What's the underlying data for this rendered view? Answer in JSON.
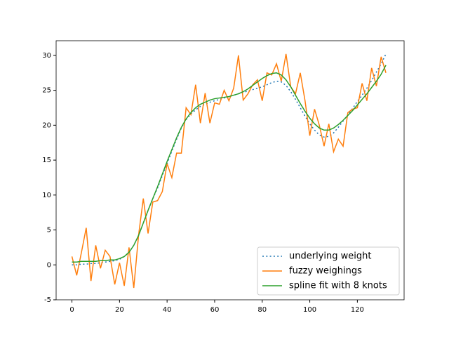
{
  "chart_data": {
    "type": "line",
    "x": [
      0,
      2,
      4,
      6,
      8,
      10,
      12,
      14,
      16,
      18,
      20,
      22,
      24,
      26,
      28,
      30,
      32,
      34,
      36,
      38,
      40,
      42,
      44,
      46,
      48,
      50,
      52,
      54,
      56,
      58,
      60,
      62,
      64,
      66,
      68,
      70,
      72,
      74,
      76,
      78,
      80,
      82,
      84,
      86,
      88,
      90,
      92,
      94,
      96,
      98,
      100,
      102,
      104,
      106,
      108,
      110,
      112,
      114,
      116,
      118,
      120,
      122,
      124,
      126,
      128,
      130,
      132
    ],
    "series": [
      {
        "name": "underlying weight",
        "color": "#1f77b4",
        "linestyle": "dotted",
        "values": [
          0,
          0,
          0.1,
          0.1,
          0.2,
          0.2,
          0.3,
          0.4,
          0.5,
          0.6,
          0.8,
          1.2,
          1.8,
          2.8,
          4.2,
          6,
          7.8,
          9.5,
          11,
          12.8,
          14.5,
          16.3,
          18,
          19.6,
          20.8,
          21.6,
          22.2,
          22.7,
          23,
          23.3,
          23.5,
          23.7,
          23.9,
          24.1,
          24.3,
          24.5,
          24.7,
          24.9,
          25.1,
          25.3,
          25.5,
          25.8,
          26.1,
          26.3,
          26.2,
          25.7,
          24.8,
          23.7,
          22.5,
          21.3,
          20.2,
          19.3,
          18.6,
          18.3,
          18.4,
          18.9,
          19.7,
          20.6,
          21.5,
          22.4,
          23.4,
          24.3,
          25.3,
          26.4,
          27.6,
          28.8,
          30.2
        ]
      },
      {
        "name": "fuzzy weighings",
        "color": "#ff7f0e",
        "linestyle": "solid",
        "values": [
          1.2,
          -1.5,
          1.8,
          5.3,
          -2.3,
          2.8,
          -0.5,
          2.1,
          1.2,
          -2.8,
          0.3,
          -3,
          2.5,
          -3.3,
          4.2,
          9.5,
          4.5,
          9,
          9.2,
          10.5,
          14.5,
          12.5,
          16,
          16,
          22.5,
          21.5,
          25.8,
          20.3,
          24.6,
          20.3,
          23.2,
          23,
          25,
          23.5,
          25.3,
          30,
          23.6,
          24.5,
          25.8,
          26.5,
          23.5,
          27.5,
          27.2,
          28.8,
          26.3,
          30.2,
          25.5,
          24.5,
          27.5,
          23.5,
          18.5,
          22.3,
          20,
          17,
          20.2,
          16.2,
          18,
          17,
          21.8,
          22.3,
          22.5,
          26,
          23.5,
          28.2,
          25.6,
          29.8,
          27.5
        ]
      },
      {
        "name": "spline fit with 8 knots",
        "color": "#2ca02c",
        "linestyle": "solid",
        "values": [
          0.4,
          0.4,
          0.5,
          0.5,
          0.5,
          0.5,
          0.6,
          0.6,
          0.7,
          0.7,
          0.9,
          1.2,
          1.8,
          2.8,
          4.2,
          6,
          7.8,
          9.5,
          11.2,
          13,
          14.8,
          16.5,
          18.2,
          19.7,
          20.9,
          21.8,
          22.5,
          23,
          23.3,
          23.6,
          23.8,
          23.9,
          24,
          24.1,
          24.3,
          24.5,
          24.8,
          25.2,
          25.7,
          26.2,
          26.7,
          27.1,
          27.4,
          27.5,
          27.2,
          26.5,
          25.5,
          24.3,
          23.1,
          22,
          21,
          20.2,
          19.6,
          19.3,
          19.3,
          19.6,
          20.1,
          20.7,
          21.4,
          22.1,
          22.9,
          23.7,
          24.5,
          25.4,
          26.3,
          27.3,
          28.6
        ]
      }
    ],
    "xlim": [
      -6.65,
      139.65
    ],
    "xticks": [
      0,
      20,
      40,
      60,
      80,
      100,
      120
    ],
    "ylim": [
      -5,
      32.1
    ],
    "yticks": [
      -5,
      0,
      5,
      10,
      15,
      20,
      25,
      30
    ],
    "legend": "lower right"
  }
}
